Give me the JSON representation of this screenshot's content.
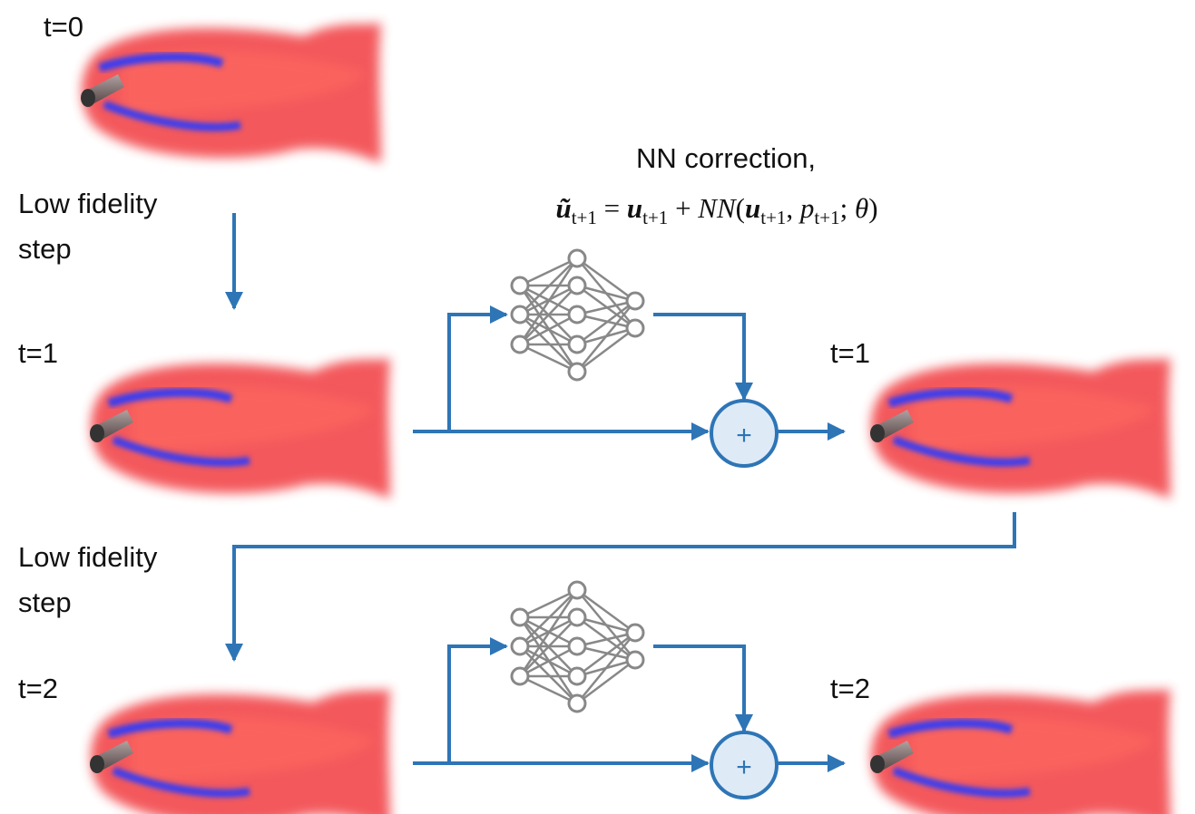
{
  "snapshots": {
    "row0_input": "t=0",
    "row1_input": "t=1",
    "row1_output": "t=1",
    "row2_input": "t=2",
    "row2_output": "t=2"
  },
  "low_fidelity_steps": [
    [
      "Low fidelity",
      "step"
    ],
    [
      "Low fidelity",
      "step"
    ]
  ],
  "nn_correction": {
    "title": "NN correction,",
    "equation": [
      {
        "text": "ũ",
        "style": "bold-italic"
      },
      {
        "text": "t+1",
        "style": "sub"
      },
      {
        "text": " = ",
        "style": "plain"
      },
      {
        "text": "u",
        "style": "bold-italic"
      },
      {
        "text": "t+1",
        "style": "sub"
      },
      {
        "text": " + ",
        "style": "plain"
      },
      {
        "text": "NN",
        "style": "italic"
      },
      {
        "text": "(",
        "style": "plain"
      },
      {
        "text": "u",
        "style": "bold-italic"
      },
      {
        "text": "t+1",
        "style": "sub"
      },
      {
        "text": ", ",
        "style": "plain"
      },
      {
        "text": "p",
        "style": "italic"
      },
      {
        "text": "t+1",
        "style": "sub"
      },
      {
        "text": "; ",
        "style": "plain"
      },
      {
        "text": "θ",
        "style": "italic"
      },
      {
        "text": ")",
        "style": "plain"
      }
    ]
  },
  "sum_symbol": [
    "+",
    "+"
  ]
}
